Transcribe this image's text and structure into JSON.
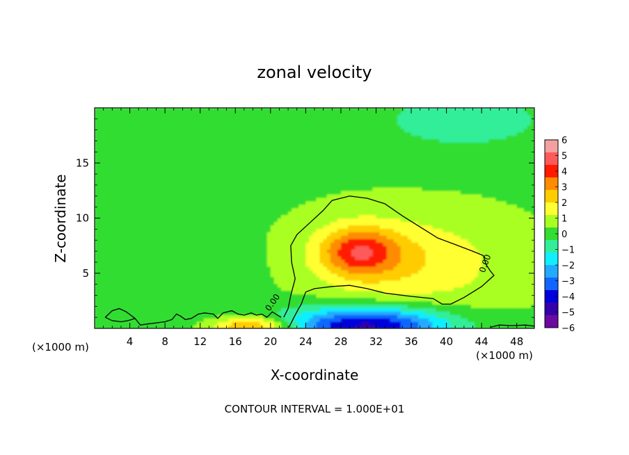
{
  "chart_data": {
    "type": "heatmap",
    "title": "zonal velocity",
    "xlabel": "X-coordinate",
    "ylabel": "Z-coordinate",
    "x_unit_left": "(×1000 m)",
    "x_unit_right": "(×1000 m)",
    "footer": "CONTOUR INTERVAL = 1.000E+01",
    "xlim": [
      0,
      50
    ],
    "ylim": [
      0,
      20
    ],
    "x_ticks": [
      4,
      8,
      12,
      16,
      20,
      24,
      28,
      32,
      36,
      40,
      44,
      48
    ],
    "y_ticks": [
      5,
      10,
      15
    ],
    "colorbar": {
      "ticks": [
        6,
        5,
        4,
        3,
        2,
        1,
        0,
        -1,
        -2,
        -3,
        -4,
        -5,
        -6
      ],
      "colors": [
        "#f4a0a0",
        "#ff5a5a",
        "#ff1a00",
        "#ff8c00",
        "#ffcc00",
        "#ffff33",
        "#aaff22",
        "#33dd33",
        "#33ee99",
        "#11eeff",
        "#22aaff",
        "#1166ff",
        "#0000dd",
        "#3300aa",
        "#6a0aa0"
      ]
    },
    "contour_label": "0.00",
    "field": {
      "background": 0.3,
      "features": [
        {
          "name": "positive jet",
          "x": 30,
          "z": 7,
          "peak": 3.2
        },
        {
          "name": "positive band",
          "x": 36,
          "z": 6,
          "peak": 1.6
        },
        {
          "name": "negative surface jet",
          "x": 31,
          "z": 0.3,
          "peak": -5.0
        },
        {
          "name": "surface positive",
          "x": 18,
          "z": 0.2,
          "peak": 3.0
        },
        {
          "name": "upper negative",
          "x": 42,
          "z": 19,
          "peak": -1.0
        },
        {
          "name": "lower negative band",
          "x": 10,
          "z": 4,
          "peak": -0.6
        }
      ]
    }
  }
}
